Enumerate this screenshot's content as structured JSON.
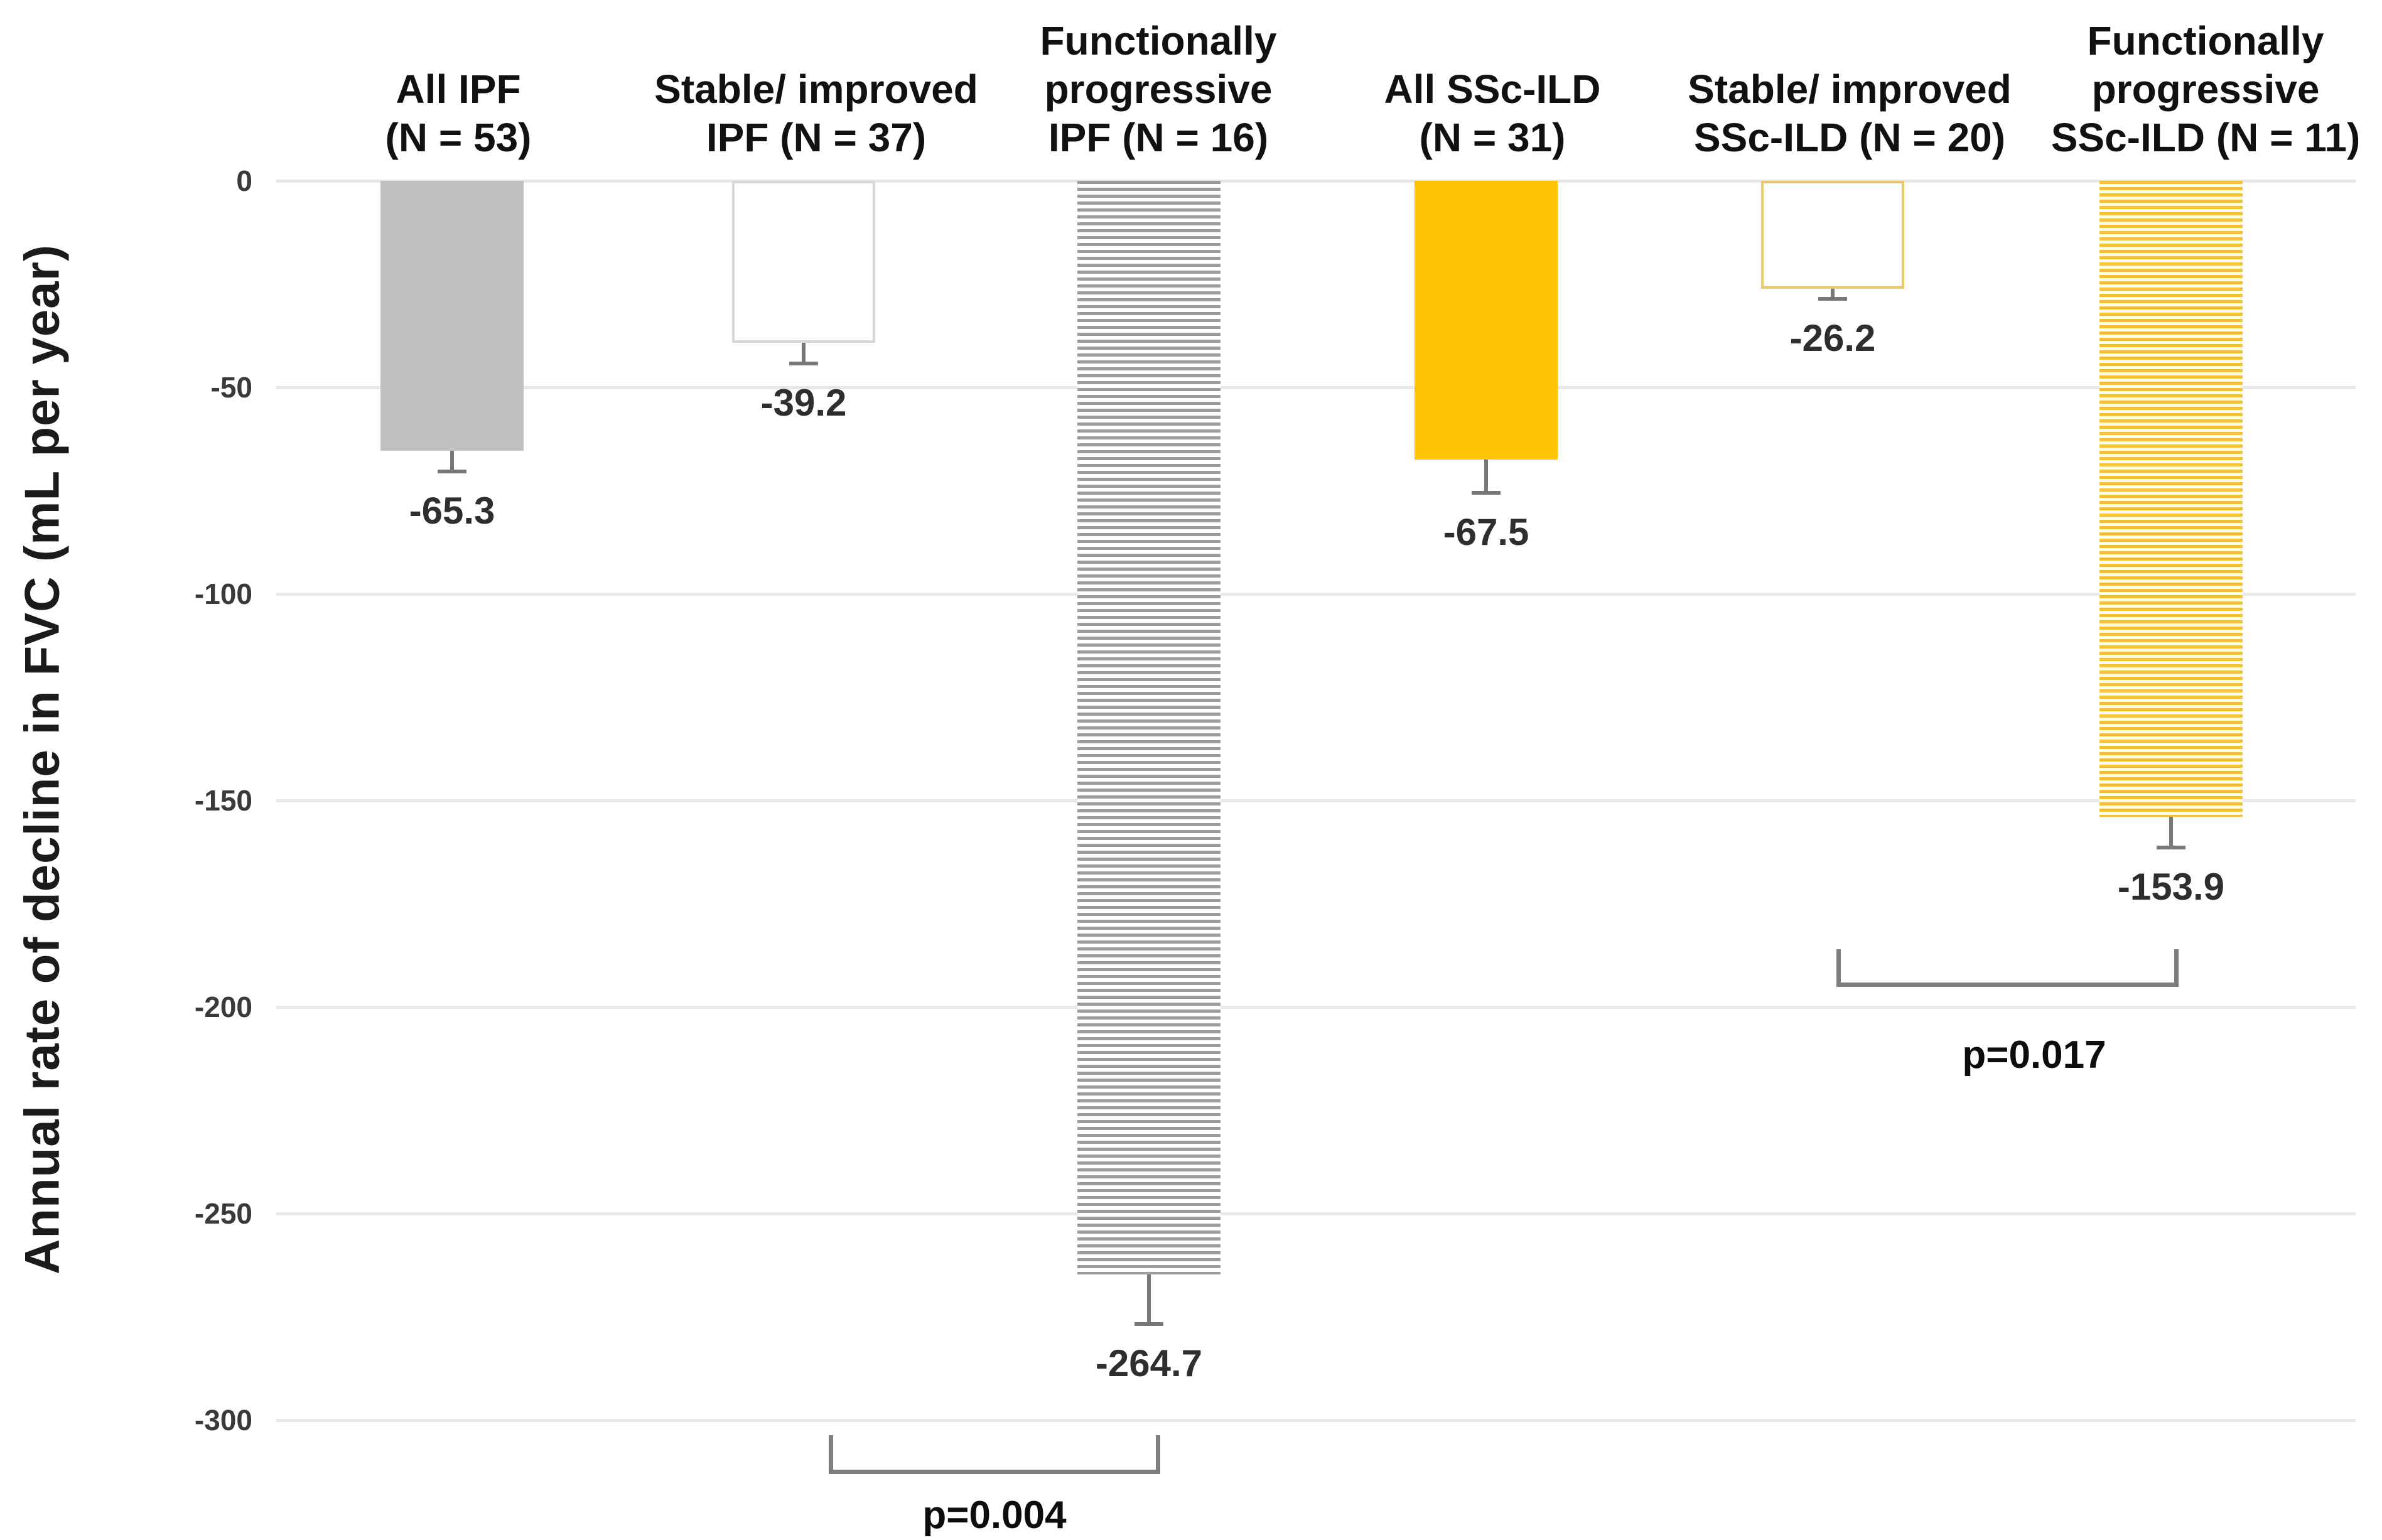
{
  "figure": {
    "background": "#ffffff"
  },
  "chart_data": {
    "type": "bar",
    "title": "",
    "xlabel": "",
    "ylabel": "Annual rate of decline in FVC (mL per year)",
    "ylim": [
      -300,
      0
    ],
    "grid": true,
    "legend_position": "none",
    "yticks": [
      0,
      -50,
      -100,
      -150,
      -200,
      -250,
      -300
    ],
    "ytick_labels": [
      "0",
      "-50",
      "-100",
      "-150",
      "-200",
      "-250",
      "-300"
    ],
    "categories": [
      "All IPF\n(N = 53)",
      "Stable/ improved\nIPF (N = 37)",
      "Functionally\nprogressive\nIPF (N = 16)",
      "All SSc-ILD\n(N = 31)",
      "Stable/ improved\nSSc-ILD (N = 20)",
      "Functionally\nprogressive\nSSc-ILD (N = 11)"
    ],
    "values": [
      -65.3,
      -39.2,
      -264.7,
      -67.5,
      -26.2,
      -153.9
    ],
    "value_labels": [
      "-65.3",
      "-39.2",
      "-264.7",
      "-67.5",
      "-26.2",
      "-153.9"
    ],
    "error_margins": [
      5,
      5,
      12,
      8,
      2.5,
      7.5
    ],
    "bar_styles": [
      "solid-gray",
      "outline-gray",
      "stripes-gray",
      "solid-amber",
      "outline-amber",
      "stripes-amber"
    ],
    "annotations": [
      {
        "label": "p=0.004",
        "from_bar": 1,
        "to_bar": 2
      },
      {
        "label": "p=0.017",
        "from_bar": 4,
        "to_bar": 5
      }
    ],
    "colors": {
      "solid_gray": "#c1c1c1",
      "stripe_gray": "#9c9c9c",
      "outline_gray": "#d8d8d8",
      "solid_amber": "#ffc303",
      "stripe_amber": "#f1c237",
      "outline_amber": "#e9c967",
      "gridline": "#e8e8e8",
      "error_bar": "#787878",
      "bracket": "#7d7d7d",
      "text": "#1b1b1b"
    }
  }
}
